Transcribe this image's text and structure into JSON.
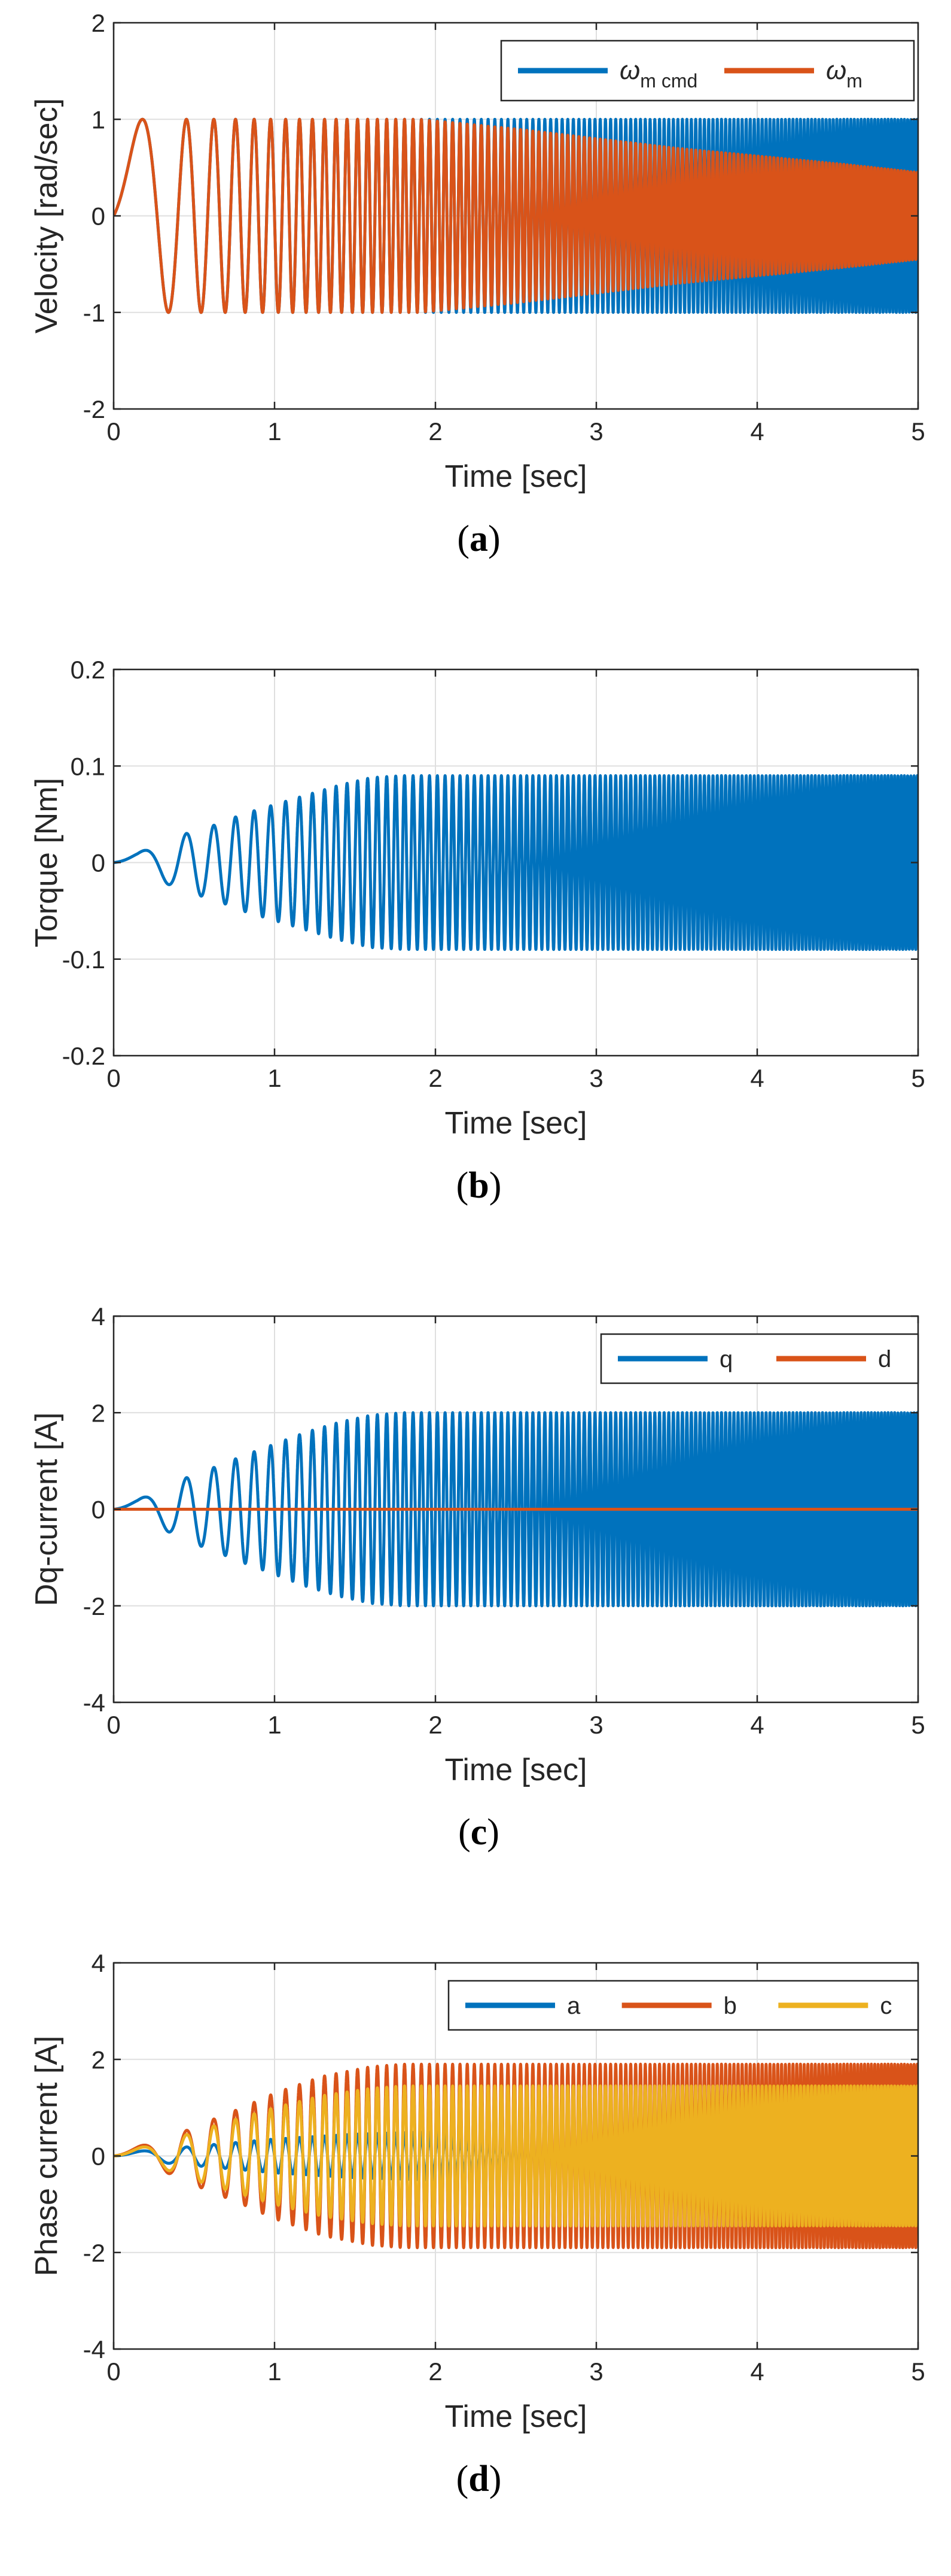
{
  "chart_data": [
    {
      "id": "a",
      "type": "line",
      "caption_letter": "a",
      "xlabel": "Time [sec]",
      "ylabel": "Velocity [rad/sec]",
      "xlim": [
        0,
        5
      ],
      "ylim": [
        -2,
        2
      ],
      "xticks": [
        "0",
        "1",
        "2",
        "3",
        "4",
        "5"
      ],
      "yticks": [
        "-2",
        "-1",
        "0",
        "1",
        "2"
      ],
      "grid": true,
      "legend_position": "top-right",
      "signal": {
        "kind": "chirp",
        "f0_hz": 0.5,
        "chirp_rate_hz_per_s": 10
      },
      "series": [
        {
          "name": "ωm cmd",
          "symbol": "ω",
          "subscript": "m cmd",
          "color": "#0072BD",
          "amplitude_knots": [
            [
              0,
              1
            ],
            [
              5,
              1
            ]
          ]
        },
        {
          "name": "ωm",
          "symbol": "ω",
          "subscript": "m",
          "color": "#D95319",
          "amplitude_knots": [
            [
              0,
              1
            ],
            [
              1.9,
              1
            ],
            [
              2.5,
              0.9
            ],
            [
              3,
              0.8
            ],
            [
              3.5,
              0.7
            ],
            [
              4,
              0.62
            ],
            [
              4.5,
              0.54
            ],
            [
              5,
              0.45
            ]
          ]
        }
      ]
    },
    {
      "id": "b",
      "type": "line",
      "caption_letter": "b",
      "xlabel": "Time [sec]",
      "ylabel": "Torque [Nm]",
      "xlim": [
        0,
        5
      ],
      "ylim": [
        -0.2,
        0.2
      ],
      "xticks": [
        "0",
        "1",
        "2",
        "3",
        "4",
        "5"
      ],
      "yticks": [
        "-0.2",
        "-0.1",
        "0",
        "0.1",
        "0.2"
      ],
      "grid": true,
      "signal": {
        "kind": "chirp",
        "f0_hz": 0.5,
        "chirp_rate_hz_per_s": 10
      },
      "series": [
        {
          "name": "Torque",
          "color": "#0072BD",
          "amplitude_knots": [
            [
              0,
              0.005
            ],
            [
              0.15,
              0.01
            ],
            [
              0.3,
              0.02
            ],
            [
              0.45,
              0.03
            ],
            [
              0.65,
              0.04
            ],
            [
              0.8,
              0.05
            ],
            [
              1,
              0.06
            ],
            [
              1.2,
              0.07
            ],
            [
              1.4,
              0.08
            ],
            [
              1.6,
              0.088
            ],
            [
              1.8,
              0.09
            ],
            [
              5,
              0.09
            ]
          ]
        }
      ]
    },
    {
      "id": "c",
      "type": "line",
      "caption_letter": "c",
      "xlabel": "Time [sec]",
      "ylabel": "Dq-current [A]",
      "xlim": [
        0,
        5
      ],
      "ylim": [
        -4,
        4
      ],
      "xticks": [
        "0",
        "1",
        "2",
        "3",
        "4",
        "5"
      ],
      "yticks": [
        "-4",
        "-2",
        "0",
        "2",
        "4"
      ],
      "grid": true,
      "legend_position": "top-right",
      "signal": {
        "kind": "chirp",
        "f0_hz": 0.5,
        "chirp_rate_hz_per_s": 10
      },
      "series": [
        {
          "name": "q",
          "color": "#0072BD",
          "amplitude_knots": [
            [
              0,
              0.1
            ],
            [
              0.15,
              0.2
            ],
            [
              0.3,
              0.4
            ],
            [
              0.45,
              0.65
            ],
            [
              0.65,
              0.9
            ],
            [
              0.8,
              1.1
            ],
            [
              1,
              1.35
            ],
            [
              1.2,
              1.6
            ],
            [
              1.4,
              1.8
            ],
            [
              1.6,
              1.95
            ],
            [
              1.8,
              2
            ],
            [
              5,
              2
            ]
          ]
        },
        {
          "name": "d",
          "color": "#D95319",
          "amplitude_knots": [
            [
              0,
              0
            ],
            [
              5,
              0
            ]
          ]
        }
      ]
    },
    {
      "id": "d",
      "type": "line",
      "caption_letter": "d",
      "xlabel": "Time [sec]",
      "ylabel": "Phase current [A]",
      "xlim": [
        0,
        5
      ],
      "ylim": [
        -4,
        4
      ],
      "xticks": [
        "0",
        "1",
        "2",
        "3",
        "4",
        "5"
      ],
      "yticks": [
        "-4",
        "-2",
        "0",
        "2",
        "4"
      ],
      "grid": true,
      "legend_position": "top-right",
      "signal": {
        "kind": "chirp",
        "f0_hz": 0.5,
        "chirp_rate_hz_per_s": 10
      },
      "series": [
        {
          "name": "a",
          "color": "#0072BD",
          "amplitude_knots": [
            [
              0,
              0.05
            ],
            [
              0.5,
              0.2
            ],
            [
              1,
              0.35
            ],
            [
              1.5,
              0.45
            ],
            [
              2,
              0.5
            ],
            [
              5,
              0.5
            ]
          ]
        },
        {
          "name": "b",
          "color": "#D95319",
          "amplitude_knots": [
            [
              0,
              0.1
            ],
            [
              0.3,
              0.3
            ],
            [
              0.5,
              0.6
            ],
            [
              0.8,
              1
            ],
            [
              1,
              1.3
            ],
            [
              1.3,
              1.65
            ],
            [
              1.6,
              1.85
            ],
            [
              1.8,
              1.9
            ],
            [
              5,
              1.9
            ]
          ]
        },
        {
          "name": "c",
          "color": "#EDB120",
          "amplitude_knots": [
            [
              0,
              0.08
            ],
            [
              0.3,
              0.25
            ],
            [
              0.5,
              0.5
            ],
            [
              0.8,
              0.8
            ],
            [
              1,
              1
            ],
            [
              1.3,
              1.25
            ],
            [
              1.6,
              1.4
            ],
            [
              1.8,
              1.45
            ],
            [
              5,
              1.45
            ]
          ]
        }
      ]
    }
  ]
}
